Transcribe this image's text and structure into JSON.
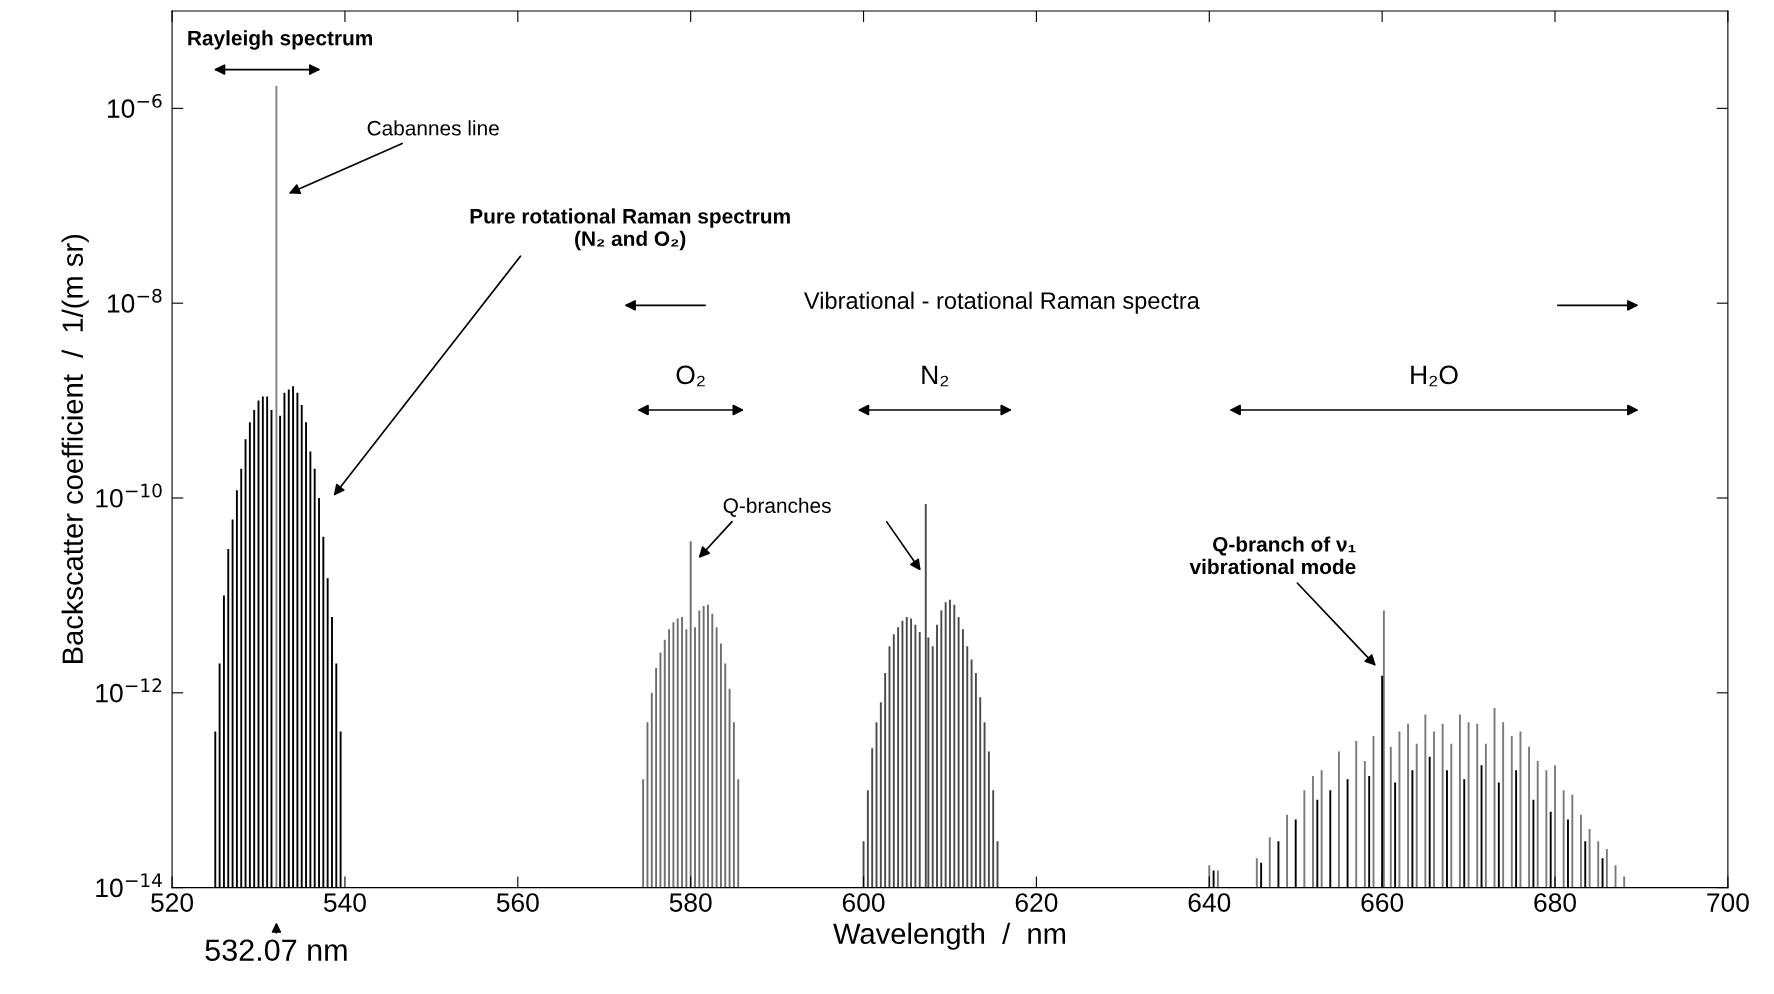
{
  "chart_data": {
    "type": "bar",
    "xlabel": "Wavelength  /  nm",
    "ylabel": "Backscatter coefficient  /  1/(m sr)",
    "xlim": [
      520,
      700
    ],
    "xticks": [
      520,
      540,
      560,
      580,
      600,
      620,
      640,
      660,
      680,
      700
    ],
    "ylim": [
      1e-14,
      1e-05
    ],
    "log": true,
    "yticks": [
      {
        "value": 1e-14,
        "label": "10$^{−14}$"
      },
      {
        "value": 1e-12,
        "label": "10$^{−12}$"
      },
      {
        "value": 1e-10,
        "label": "10$^{−10}$"
      },
      {
        "value": 1e-08,
        "label": "10$^{−8}$"
      },
      {
        "value": 1e-06,
        "label": "10$^{−6}$"
      }
    ],
    "grid": false,
    "legend": false,
    "series": [
      {
        "color": "#000000",
        "x": [
          525,
          525.5,
          526,
          526.5,
          527,
          527.5,
          528,
          528.5,
          529,
          529.5,
          530,
          530.5,
          531,
          531.5,
          532.5,
          533,
          533.5,
          534,
          534.5,
          535,
          535.5,
          536,
          536.5,
          537,
          537.5,
          538,
          538.5,
          539,
          539.5
        ],
        "values": [
          4e-13,
          2e-12,
          1e-11,
          3e-11,
          6e-11,
          1.2e-10,
          2e-10,
          4e-10,
          6e-10,
          8e-10,
          1e-09,
          1.1e-09,
          1.1e-09,
          8e-10,
          7e-10,
          1.2e-09,
          1.3e-09,
          1.4e-09,
          1.2e-09,
          9e-10,
          6e-10,
          3e-10,
          2e-10,
          1e-10,
          4e-11,
          1.5e-11,
          6e-12,
          2e-12,
          4e-13
        ]
      },
      {
        "color": "#808080",
        "x": [
          532.07
        ],
        "values": [
          1.7e-06
        ]
      },
      {
        "color": "#6e6e6e",
        "x": [
          574.5,
          575,
          575.5,
          576,
          576.5,
          577,
          577.5,
          578,
          578.5,
          579,
          579.5,
          580,
          580.5,
          581,
          581.5,
          582,
          582.5,
          583,
          583.5,
          584,
          584.5,
          585,
          585.5
        ],
        "values": [
          1.3e-13,
          5e-13,
          1e-12,
          1.8e-12,
          2.6e-12,
          3.5e-12,
          4.5e-12,
          5.3e-12,
          5.8e-12,
          6e-12,
          4.5e-12,
          3.6e-11,
          4.7e-12,
          7e-12,
          7.8e-12,
          8e-12,
          6.5e-12,
          4.7e-12,
          3.2e-12,
          2e-12,
          1.1e-12,
          5e-13,
          1.3e-13
        ]
      },
      {
        "color": "#4a4a4a",
        "x": [
          600,
          600.5,
          601,
          601.5,
          602,
          602.5,
          603,
          603.5,
          604,
          604.5,
          605,
          605.5,
          606,
          606.5,
          607.2,
          607.5,
          608,
          608.5,
          609,
          609.5,
          610,
          610.5,
          611,
          611.5,
          612,
          612.5,
          613,
          613.5,
          614,
          614.5,
          615,
          615.5
        ],
        "values": [
          3e-14,
          1e-13,
          2.7e-13,
          5e-13,
          8e-13,
          1.6e-12,
          3e-12,
          4e-12,
          4.7e-12,
          5.5e-12,
          6e-12,
          5.8e-12,
          5e-12,
          4.2e-12,
          8.7e-11,
          3.7e-12,
          3e-12,
          5e-12,
          7e-12,
          8.5e-12,
          9e-12,
          8e-12,
          6e-12,
          4.5e-12,
          3e-12,
          2.2e-12,
          1.6e-12,
          9e-13,
          5e-13,
          2.5e-13,
          1e-13,
          3e-14
        ]
      },
      {
        "color": "#7a7a7a",
        "x": [
          640,
          641,
          645.5,
          647,
          649,
          651,
          652,
          653,
          655,
          657,
          658,
          659,
          660.2,
          661,
          662,
          663,
          664,
          665,
          666,
          667,
          668,
          669,
          670,
          671,
          672,
          673,
          674,
          675,
          676,
          677,
          678,
          679,
          680,
          681,
          682,
          683,
          684,
          685,
          686,
          687,
          688
        ],
        "values": [
          1.7e-14,
          1.5e-14,
          2e-14,
          3.3e-14,
          5.6e-14,
          1e-13,
          1.4e-13,
          1.6e-13,
          2.5e-13,
          3.2e-13,
          2e-13,
          3.6e-13,
          7e-12,
          2.8e-13,
          4e-13,
          4.8e-13,
          3e-13,
          6e-13,
          4e-13,
          4.8e-13,
          3e-13,
          6e-13,
          5e-13,
          4.8e-13,
          3e-13,
          7e-13,
          5e-13,
          3.6e-13,
          4e-13,
          2.8e-13,
          2e-13,
          1.6e-13,
          1.8e-13,
          1e-13,
          9e-14,
          5.6e-14,
          4e-14,
          3e-14,
          2.5e-14,
          1.7e-14,
          1.3e-14
        ]
      },
      {
        "color": "#000000",
        "x": [
          640.5,
          646,
          648,
          650,
          652.5,
          654,
          656,
          658.5,
          660,
          661.5,
          663.5,
          665.5,
          667.5,
          669.5,
          671.5,
          673.5,
          675.5,
          677.5,
          679.5,
          681.5,
          683.5,
          685.5
        ],
        "values": [
          1.5e-14,
          1.8e-14,
          3e-14,
          5e-14,
          8e-14,
          1e-13,
          1.3e-13,
          1.4e-13,
          1.5e-12,
          1.2e-13,
          1.6e-13,
          2.2e-13,
          1.6e-13,
          1.3e-13,
          1.8e-13,
          1.2e-13,
          1.6e-13,
          8e-14,
          6e-14,
          5e-14,
          3e-14,
          2e-14
        ]
      }
    ],
    "annotations": [
      "Rayleigh spectrum",
      "Cabannes line",
      "Pure rotational Raman spectrum\n(N₂ and O₂)",
      "Vibrational - rotational Raman spectra",
      "O₂",
      "N₂",
      "H₂O",
      "Q-branches",
      "Q-branch of ν₁\nvibrational mode",
      "532.07 nm"
    ]
  }
}
